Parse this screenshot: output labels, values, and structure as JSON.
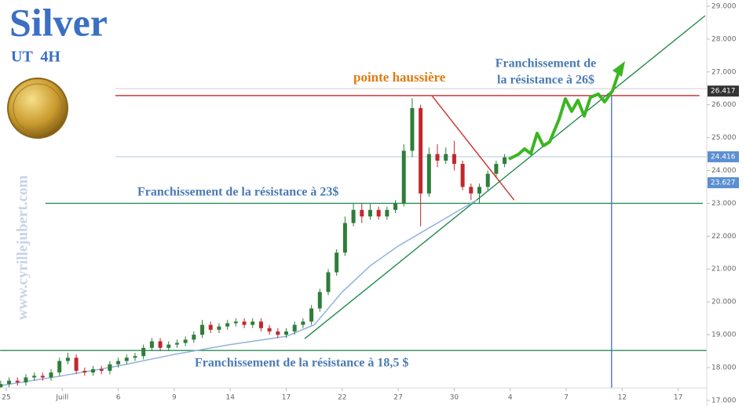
{
  "chart_data": {
    "type": "candlestick",
    "title": "Silver",
    "subtitle": "UT  4H",
    "watermark": "www.cyrillejubert.com",
    "annotations": [
      "pointe haussière",
      "Franchissement de",
      "la résistance à 26$",
      "Franchissement de la résistance à 23$",
      "Franchissement de la résistance à 18,5 $"
    ],
    "x": [
      -0.1,
      0.05,
      0.2,
      0.35,
      0.5,
      0.65,
      0.8,
      0.95,
      1.1,
      1.25,
      1.4,
      1.55,
      1.7,
      1.85,
      2.0,
      2.15,
      2.3,
      2.45,
      2.6,
      2.75,
      2.9,
      3.05,
      3.2,
      3.35,
      3.5,
      3.65,
      3.8,
      3.95,
      4.1,
      4.25,
      4.4,
      4.55,
      4.7,
      4.85,
      5.0,
      5.15,
      5.3,
      5.45,
      5.6,
      5.75,
      5.9,
      6.05,
      6.2,
      6.35,
      6.5,
      6.65,
      6.8,
      6.95,
      7.1,
      7.25,
      7.4,
      7.55,
      7.7,
      7.85,
      8.0,
      8.15,
      8.3,
      8.45,
      8.6,
      8.75,
      8.9
    ],
    "open": [
      17.4,
      17.5,
      17.6,
      17.55,
      17.7,
      17.75,
      17.7,
      17.85,
      18.2,
      18.3,
      17.9,
      17.85,
      17.95,
      17.9,
      18.1,
      18.2,
      18.3,
      18.35,
      18.6,
      18.8,
      18.6,
      18.7,
      18.75,
      18.85,
      19.0,
      19.3,
      19.15,
      19.25,
      19.35,
      19.4,
      19.3,
      19.4,
      19.2,
      19.1,
      19.0,
      19.1,
      19.3,
      19.4,
      19.8,
      20.3,
      20.9,
      21.5,
      22.4,
      22.8,
      22.6,
      22.8,
      22.6,
      22.8,
      23.0,
      24.6,
      25.9,
      23.3,
      24.5,
      24.3,
      24.5,
      24.2,
      23.5,
      23.3,
      23.5,
      23.9,
      24.2
    ],
    "high": [
      17.6,
      17.7,
      17.7,
      17.8,
      17.85,
      17.85,
      17.95,
      18.3,
      18.45,
      18.4,
      18.0,
      18.05,
      18.05,
      18.2,
      18.3,
      18.4,
      18.45,
      18.7,
      18.9,
      18.9,
      18.8,
      18.85,
      18.95,
      19.1,
      19.45,
      19.4,
      19.35,
      19.45,
      19.5,
      19.5,
      19.5,
      19.5,
      19.3,
      19.2,
      19.2,
      19.4,
      19.5,
      19.9,
      20.4,
      21.0,
      21.6,
      22.6,
      23.0,
      23.0,
      23.0,
      22.9,
      22.9,
      23.1,
      24.8,
      26.2,
      26.0,
      24.7,
      24.8,
      24.7,
      24.9,
      24.3,
      23.6,
      23.6,
      24.0,
      24.3,
      24.5
    ],
    "low": [
      17.3,
      17.4,
      17.45,
      17.45,
      17.6,
      17.6,
      17.6,
      17.75,
      18.1,
      17.8,
      17.75,
      17.75,
      17.8,
      17.8,
      18.0,
      18.1,
      18.2,
      18.25,
      18.5,
      18.5,
      18.5,
      18.6,
      18.65,
      18.75,
      18.9,
      19.05,
      19.05,
      19.15,
      19.25,
      19.2,
      19.2,
      19.1,
      19.0,
      18.9,
      18.9,
      19.0,
      19.2,
      19.3,
      19.7,
      20.2,
      20.8,
      21.4,
      22.3,
      22.4,
      22.5,
      22.5,
      22.5,
      22.7,
      22.9,
      24.4,
      22.3,
      23.2,
      24.1,
      24.2,
      24.0,
      23.4,
      23.1,
      23.0,
      23.4,
      23.8,
      24.1
    ],
    "close": [
      17.5,
      17.6,
      17.55,
      17.7,
      17.75,
      17.7,
      17.85,
      18.2,
      18.3,
      17.9,
      17.85,
      17.95,
      17.9,
      18.1,
      18.2,
      18.3,
      18.35,
      18.6,
      18.8,
      18.6,
      18.7,
      18.75,
      18.85,
      19.0,
      19.3,
      19.15,
      19.25,
      19.35,
      19.4,
      19.3,
      19.4,
      19.2,
      19.1,
      19.0,
      19.1,
      19.3,
      19.4,
      19.8,
      20.3,
      20.9,
      21.5,
      22.4,
      22.8,
      22.6,
      22.8,
      22.6,
      22.8,
      23.0,
      24.6,
      25.9,
      23.3,
      24.5,
      24.3,
      24.5,
      24.2,
      23.5,
      23.3,
      23.5,
      23.9,
      24.2,
      24.4
    ],
    "up_color": "#2f7d3a",
    "down_color": "#c0282d",
    "ma": {
      "color": "#8fb3dc",
      "x": [
        -0.1,
        1,
        2,
        3,
        4,
        5,
        5.5,
        6,
        6.5,
        7,
        7.5,
        8,
        8.4
      ],
      "values": [
        17.45,
        17.75,
        18.05,
        18.4,
        18.7,
        18.95,
        19.3,
        20.3,
        21.1,
        21.7,
        22.2,
        22.7,
        23.1
      ]
    },
    "lines": [
      {
        "color": "#dddddd",
        "x": [
          1.95,
          12.51
        ],
        "values": [
          26.49,
          26.49
        ]
      },
      {
        "color": "#c8d8ea",
        "x": [
          1.95,
          12.51
        ],
        "values": [
          24.42,
          24.42
        ]
      },
      {
        "color": "#c0282d",
        "x": [
          1.95,
          12.38
        ],
        "values": [
          26.28,
          26.28
        ]
      },
      {
        "color": "#2e8b57",
        "x": [
          0.7,
          12.44
        ],
        "values": [
          23.0,
          23.0
        ]
      },
      {
        "color": "#2e8b57",
        "x": [
          -0.11,
          12.51
        ],
        "values": [
          18.52,
          18.52
        ]
      },
      {
        "color": "#1e8a4c",
        "x": [
          5.33,
          12.48
        ],
        "values": [
          18.88,
          28.71
        ]
      },
      {
        "color": "#d0302f",
        "x": [
          7.6,
          9.07
        ],
        "values": [
          26.28,
          23.1
        ]
      },
      {
        "color": "#4a7ab5",
        "x": [
          10.81,
          10.81
        ],
        "values": [
          26.28,
          17.38
        ]
      }
    ],
    "price_tags": [
      {
        "value": 26.417,
        "color": "#333333"
      },
      {
        "value": 24.416,
        "color": "#5b8fd1"
      },
      {
        "value": 23.627,
        "color": "#5b8fd1"
      }
    ],
    "xlim": [
      -0.112,
      12.51
    ],
    "ylim": [
      16.83,
      29.19
    ],
    "xticks": [
      {
        "value": 0,
        "label": "25"
      },
      {
        "value": 1,
        "label": "Juill"
      },
      {
        "value": 2,
        "label": "6"
      },
      {
        "value": 3,
        "label": "9"
      },
      {
        "value": 4,
        "label": "14"
      },
      {
        "value": 5,
        "label": "17"
      },
      {
        "value": 6,
        "label": "22"
      },
      {
        "value": 7,
        "label": "27"
      },
      {
        "value": 8,
        "label": "30"
      },
      {
        "value": 9,
        "label": "4"
      },
      {
        "value": 10,
        "label": "7"
      },
      {
        "value": 11,
        "label": "12"
      },
      {
        "value": 12,
        "label": "17"
      }
    ],
    "yticks": [
      {
        "value": 17,
        "label": "17.000"
      },
      {
        "value": 18,
        "label": "18.000"
      },
      {
        "value": 19,
        "label": "19.000"
      },
      {
        "value": 20,
        "label": "20.000"
      },
      {
        "value": 21,
        "label": "21.000"
      },
      {
        "value": 22,
        "label": "22.000"
      },
      {
        "value": 23,
        "label": "23.000"
      },
      {
        "value": 24,
        "label": "24.000"
      },
      {
        "value": 25,
        "label": "25.000"
      },
      {
        "value": 26,
        "label": "26.000"
      },
      {
        "value": 27,
        "label": "27.000"
      },
      {
        "value": 28,
        "label": "28.000"
      },
      {
        "value": 29,
        "label": "29.000"
      }
    ],
    "grid": false
  }
}
